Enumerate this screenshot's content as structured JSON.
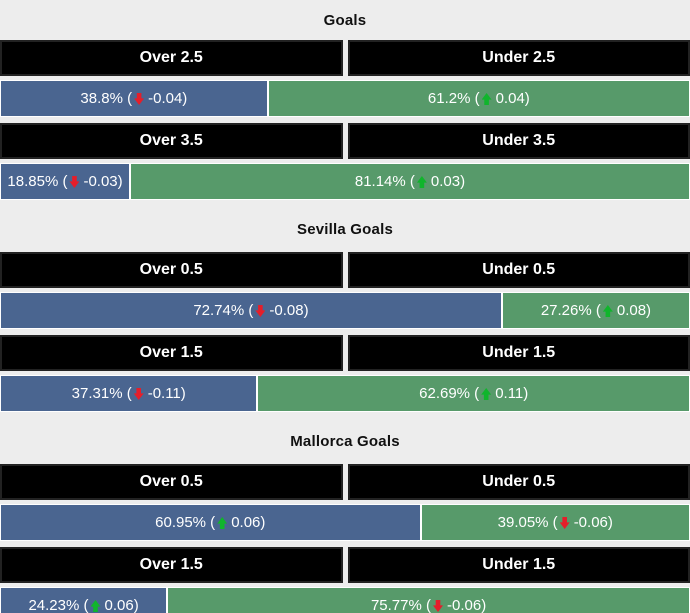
{
  "colors": {
    "background": "#ededed",
    "header_bg": "#000000",
    "header_text": "#ffffff",
    "over_bar": "#4a6590",
    "under_bar": "#579a6a",
    "bar_text": "#ffffff",
    "up_icon": "#10b52c",
    "down_icon": "#e51e2a",
    "title_text": "#111111"
  },
  "chart_data": [
    {
      "type": "bar",
      "title": "Goals",
      "orientation": "horizontal-stacked-pair",
      "xlim": [
        0,
        100
      ],
      "rows": [
        {
          "over": {
            "header": "Over 2.5",
            "pct": 38.8,
            "pct_label": "38.8% (",
            "trend": "down",
            "change": -0.04,
            "change_label": "-0.04)"
          },
          "under": {
            "header": "Under 2.5",
            "pct": 61.2,
            "pct_label": "61.2% (",
            "trend": "up",
            "change": 0.04,
            "change_label": "0.04)"
          }
        },
        {
          "over": {
            "header": "Over 3.5",
            "pct": 18.85,
            "pct_label": "18.85% (",
            "trend": "down",
            "change": -0.03,
            "change_label": "-0.03)"
          },
          "under": {
            "header": "Under 3.5",
            "pct": 81.14,
            "pct_label": "81.14% (",
            "trend": "up",
            "change": 0.03,
            "change_label": "0.03)"
          }
        }
      ]
    },
    {
      "type": "bar",
      "title": "Sevilla Goals",
      "orientation": "horizontal-stacked-pair",
      "xlim": [
        0,
        100
      ],
      "rows": [
        {
          "over": {
            "header": "Over 0.5",
            "pct": 72.74,
            "pct_label": "72.74% (",
            "trend": "down",
            "change": -0.08,
            "change_label": "-0.08)"
          },
          "under": {
            "header": "Under 0.5",
            "pct": 27.26,
            "pct_label": "27.26% (",
            "trend": "up",
            "change": 0.08,
            "change_label": "0.08)"
          }
        },
        {
          "over": {
            "header": "Over 1.5",
            "pct": 37.31,
            "pct_label": "37.31% (",
            "trend": "down",
            "change": -0.11,
            "change_label": "-0.11)"
          },
          "under": {
            "header": "Under 1.5",
            "pct": 62.69,
            "pct_label": "62.69% (",
            "trend": "up",
            "change": 0.11,
            "change_label": "0.11)"
          }
        }
      ]
    },
    {
      "type": "bar",
      "title": "Mallorca Goals",
      "orientation": "horizontal-stacked-pair",
      "xlim": [
        0,
        100
      ],
      "rows": [
        {
          "over": {
            "header": "Over 0.5",
            "pct": 60.95,
            "pct_label": "60.95% (",
            "trend": "up",
            "change": 0.06,
            "change_label": "0.06)"
          },
          "under": {
            "header": "Under 0.5",
            "pct": 39.05,
            "pct_label": "39.05% (",
            "trend": "down",
            "change": -0.06,
            "change_label": "-0.06)"
          }
        },
        {
          "over": {
            "header": "Over 1.5",
            "pct": 24.23,
            "pct_label": "24.23% (",
            "trend": "up",
            "change": 0.06,
            "change_label": "0.06)"
          },
          "under": {
            "header": "Under 1.5",
            "pct": 75.77,
            "pct_label": "75.77% (",
            "trend": "down",
            "change": -0.06,
            "change_label": "-0.06)"
          }
        }
      ]
    }
  ]
}
